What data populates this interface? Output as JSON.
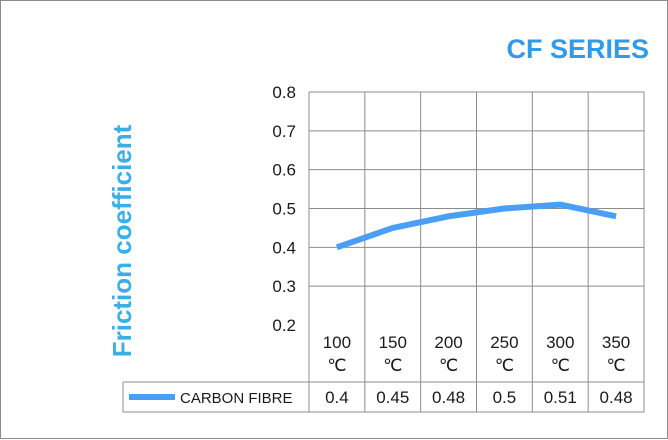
{
  "chart_data": {
    "type": "line",
    "title": "CF SERIES",
    "ylabel": "Friction coefficient",
    "xlabel": "",
    "categories": [
      "100",
      "150",
      "200",
      "250",
      "300",
      "350"
    ],
    "unit": "℃",
    "ylim": [
      0.2,
      0.8
    ],
    "yticks": [
      "0.8",
      "0.7",
      "0.6",
      "0.5",
      "0.4",
      "0.3",
      "0.2"
    ],
    "grid": true,
    "series": [
      {
        "name": "CARBON FIBRE",
        "values": [
          0.4,
          0.45,
          0.48,
          0.5,
          0.51,
          0.48
        ],
        "labels": [
          "0.4",
          "0.45",
          "0.48",
          "0.5",
          "0.51",
          "0.48"
        ],
        "color": "#4a9ff5"
      }
    ]
  }
}
